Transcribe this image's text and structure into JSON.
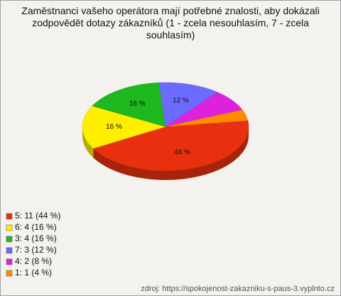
{
  "chart_data": {
    "type": "pie",
    "title": "Zaměstnanci vašeho operátora mají potřebné znalosti, aby dokázali zodpovědět dotazy zákazníků (1 - zcela nesouhlasím, 7 - zcela souhlasím)",
    "categories": [
      "5: 11 (44 %)",
      "6: 4 (16 %)",
      "3: 4 (16 %)",
      "7: 3 (12 %)",
      "4: 2 (8 %)",
      "1: 1 (4 %)"
    ],
    "values": [
      44,
      16,
      16,
      12,
      8,
      4
    ],
    "value_labels": [
      "44 %",
      "16 %",
      "16 %",
      "12 %",
      "",
      ""
    ],
    "colors": [
      "#e8300e",
      "#ffee00",
      "#1fb81f",
      "#6b6bff",
      "#dd22dd",
      "#ff8a00"
    ],
    "source": "zdroj: https://spokojenost-zakazniku-s-paus-3.vyplnto.cz"
  }
}
